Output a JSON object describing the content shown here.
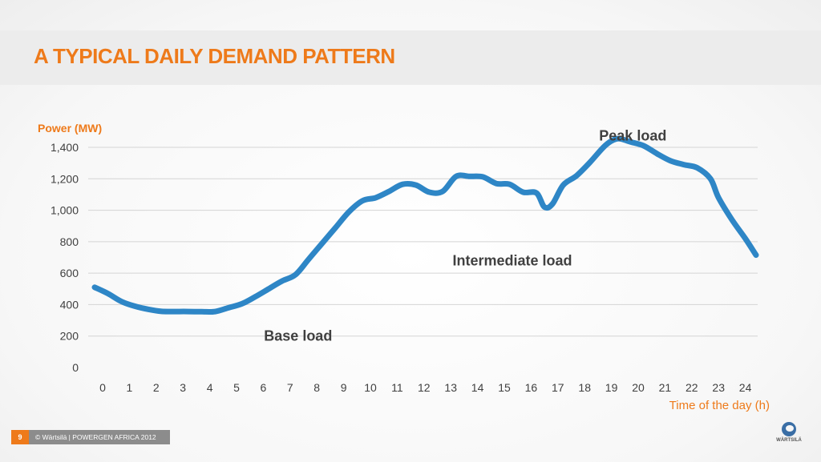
{
  "slide": {
    "title": "A TYPICAL DAILY DEMAND PATTERN",
    "page_number": "9",
    "footer": "© Wärtsilä  |  POWERGEN AFRICA 2012",
    "logo_text": "WÄRTSILÄ"
  },
  "colors": {
    "accent": "#ee7a1a",
    "line": "#2e86c6",
    "grid": "#d4d4d4",
    "text": "#404040"
  },
  "chart_data": {
    "type": "line",
    "title": "A TYPICAL DAILY DEMAND PATTERN",
    "xlabel": "Time of the day (h)",
    "ylabel": "Power (MW)",
    "ylim": [
      0,
      1400
    ],
    "xlim": [
      0,
      24
    ],
    "y_ticks": [
      "0",
      "200",
      "400",
      "600",
      "800",
      "1,000",
      "1,200",
      "1,400"
    ],
    "y_tick_values": [
      0,
      200,
      400,
      600,
      800,
      1000,
      1200,
      1400
    ],
    "x_ticks": [
      "0",
      "1",
      "2",
      "3",
      "4",
      "5",
      "6",
      "7",
      "8",
      "9",
      "10",
      "11",
      "12",
      "13",
      "14",
      "15",
      "16",
      "17",
      "18",
      "19",
      "20",
      "21",
      "22",
      "23",
      "24"
    ],
    "grid": true,
    "annotations": [
      {
        "text": "Base load",
        "x": 7.3,
        "y": 200
      },
      {
        "text": "Intermediate load",
        "x": 15.3,
        "y": 680
      },
      {
        "text": "Peak load",
        "x": 19.8,
        "y": 1475
      }
    ],
    "series": [
      {
        "x": [
          -0.3,
          0.2,
          0.7,
          1.2,
          1.7,
          2.2,
          2.7,
          3.2,
          3.7,
          4.2,
          4.7,
          5.2,
          5.7,
          6.2,
          6.7,
          7.2,
          7.7,
          8.2,
          8.7,
          9.2,
          9.7,
          10.2,
          10.7,
          11.2,
          11.7,
          12.2,
          12.7,
          13.2,
          13.7,
          14.2,
          14.7,
          15.2,
          15.7,
          16.2,
          16.5,
          16.8,
          17.2,
          17.7,
          18.2,
          18.7,
          19.0,
          19.3,
          19.7,
          20.2,
          20.7,
          21.2,
          21.7,
          22.2,
          22.7,
          23.0,
          23.5,
          24.0,
          24.4
        ],
        "values": [
          510,
          470,
          420,
          390,
          370,
          357,
          356,
          356,
          355,
          356,
          380,
          405,
          450,
          500,
          550,
          590,
          690,
          790,
          890,
          990,
          1060,
          1080,
          1120,
          1165,
          1160,
          1115,
          1120,
          1215,
          1215,
          1212,
          1170,
          1165,
          1115,
          1110,
          1020,
          1040,
          1160,
          1220,
          1305,
          1400,
          1440,
          1455,
          1435,
          1410,
          1360,
          1315,
          1290,
          1270,
          1200,
          1080,
          940,
          820,
          715
        ]
      }
    ]
  }
}
